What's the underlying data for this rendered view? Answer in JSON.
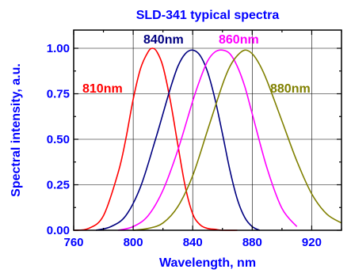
{
  "chart_data": {
    "type": "line",
    "title": "SLD-341 typical spectra",
    "xlabel": "Wavelength, nm",
    "ylabel": "Spectral intensity, a.u.",
    "xlim": [
      760,
      940
    ],
    "ylim": [
      0,
      1.1
    ],
    "grid": true,
    "x_ticks": [
      "760",
      "800",
      "840",
      "880",
      "920"
    ],
    "x_tick_values": [
      760,
      800,
      840,
      880,
      920
    ],
    "y_ticks": [
      "0.00",
      "0.25",
      "0.50",
      "0.75",
      "1.00"
    ],
    "y_tick_values": [
      0,
      0.25,
      0.5,
      0.75,
      1.0
    ],
    "series": [
      {
        "name": "810nm",
        "color": "#ff0000",
        "x": [
          760,
          770,
          780,
          790,
          795,
          800,
          805,
          810,
          813,
          816,
          820,
          825,
          830,
          835,
          840,
          845,
          850,
          855,
          860,
          870
        ],
        "y": [
          0.0,
          0.01,
          0.08,
          0.32,
          0.5,
          0.72,
          0.89,
          0.98,
          1.0,
          0.98,
          0.9,
          0.71,
          0.47,
          0.24,
          0.09,
          0.03,
          0.01,
          0.005,
          0.0,
          0.0
        ]
      },
      {
        "name": "840nm",
        "color": "#000080",
        "x": [
          775,
          785,
          795,
          805,
          815,
          820,
          825,
          830,
          835,
          840,
          845,
          850,
          855,
          860,
          865,
          870,
          875,
          880,
          885
        ],
        "y": [
          0.0,
          0.02,
          0.08,
          0.24,
          0.5,
          0.64,
          0.78,
          0.9,
          0.97,
          0.99,
          0.96,
          0.87,
          0.72,
          0.53,
          0.33,
          0.17,
          0.07,
          0.02,
          0.0
        ]
      },
      {
        "name": "860nm",
        "color": "#ff00ff",
        "x": [
          790,
          800,
          810,
          820,
          830,
          840,
          845,
          850,
          855,
          860,
          865,
          870,
          875,
          880,
          890,
          900,
          910
        ],
        "y": [
          0.0,
          0.02,
          0.08,
          0.22,
          0.44,
          0.71,
          0.83,
          0.93,
          0.98,
          0.99,
          0.97,
          0.9,
          0.79,
          0.64,
          0.34,
          0.12,
          0.02
        ]
      },
      {
        "name": "880nm",
        "color": "#808000",
        "x": [
          800,
          810,
          820,
          830,
          840,
          850,
          860,
          865,
          870,
          875,
          880,
          885,
          890,
          900,
          910,
          920,
          930,
          940
        ],
        "y": [
          0.0,
          0.01,
          0.04,
          0.13,
          0.3,
          0.55,
          0.8,
          0.9,
          0.96,
          0.99,
          0.97,
          0.91,
          0.82,
          0.6,
          0.38,
          0.2,
          0.09,
          0.04
        ]
      }
    ],
    "annotations": [
      {
        "text": "810nm",
        "color": "#ff0000"
      },
      {
        "text": "840nm",
        "color": "#000080"
      },
      {
        "text": "860nm",
        "color": "#ff00ff"
      },
      {
        "text": "880nm",
        "color": "#808000"
      }
    ],
    "colors": {
      "axis_text": "#0000ff",
      "axes": "#000000",
      "grid": "#000000"
    }
  }
}
